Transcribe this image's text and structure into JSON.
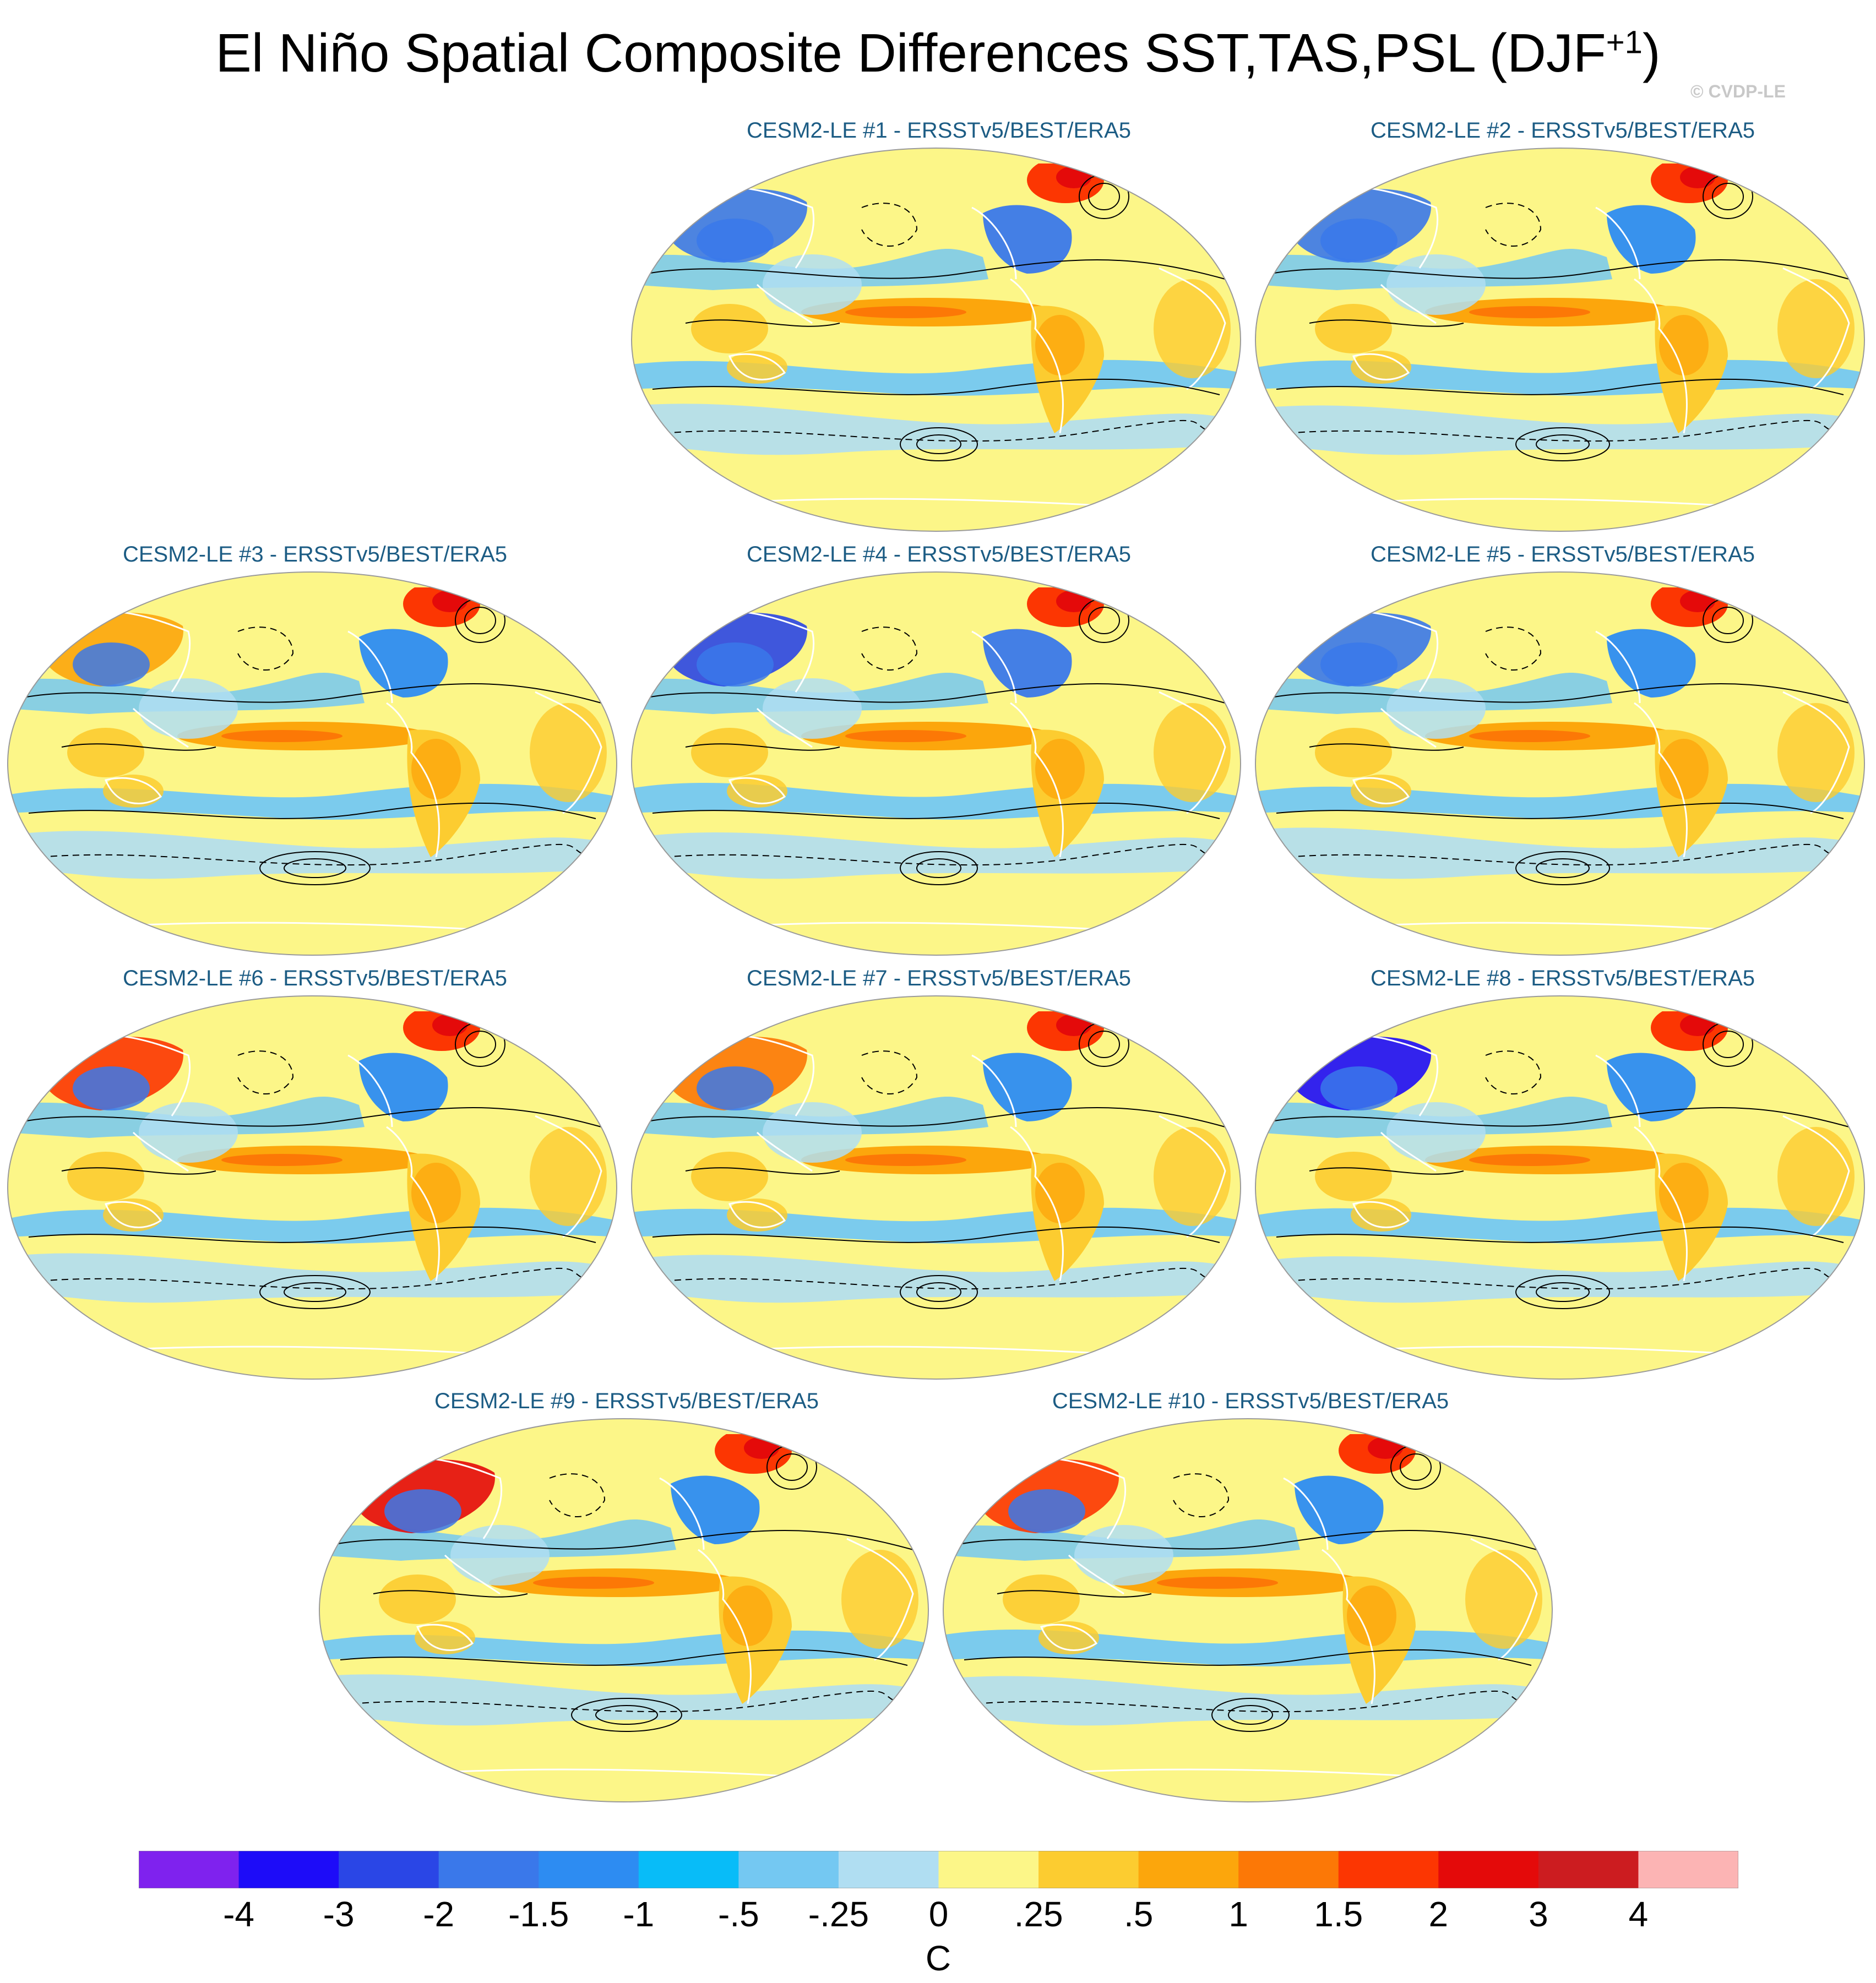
{
  "figure": {
    "title_main": "El Niño Spatial Composite Differences SST,TAS,PSL (DJF",
    "title_sup": "+1",
    "title_close": ")",
    "watermark": "© CVDP-LE"
  },
  "panels": [
    {
      "title": "CESM2-LE #1 - ERSSTv5/BEST/ERA5"
    },
    {
      "title": "CESM2-LE #2 - ERSSTv5/BEST/ERA5"
    },
    {
      "title": "CESM2-LE #3 - ERSSTv5/BEST/ERA5"
    },
    {
      "title": "CESM2-LE #4 - ERSSTv5/BEST/ERA5"
    },
    {
      "title": "CESM2-LE #5 - ERSSTv5/BEST/ERA5"
    },
    {
      "title": "CESM2-LE #6 - ERSSTv5/BEST/ERA5"
    },
    {
      "title": "CESM2-LE #7 - ERSSTv5/BEST/ERA5"
    },
    {
      "title": "CESM2-LE #8 - ERSSTv5/BEST/ERA5"
    },
    {
      "title": "CESM2-LE #9 - ERSSTv5/BEST/ERA5"
    },
    {
      "title": "CESM2-LE #10 - ERSSTv5/BEST/ERA5"
    }
  ],
  "colorbar": {
    "units": "C",
    "labels": [
      "-4",
      "-3",
      "-2",
      "-1.5",
      "-1",
      "-.5",
      "-.25",
      "0",
      ".25",
      ".5",
      "1",
      "1.5",
      "2",
      "3",
      "4"
    ],
    "colors": [
      "#7f22ee",
      "#1d0cf8",
      "#2a46e6",
      "#3a78ea",
      "#2d8cf2",
      "#08bcf8",
      "#74c8f2",
      "#b0def2",
      "#fcf688",
      "#fccc30",
      "#fca60c",
      "#fc7806",
      "#fc3602",
      "#e40a0a",
      "#cc1c20",
      "#fcb4b4"
    ]
  }
}
